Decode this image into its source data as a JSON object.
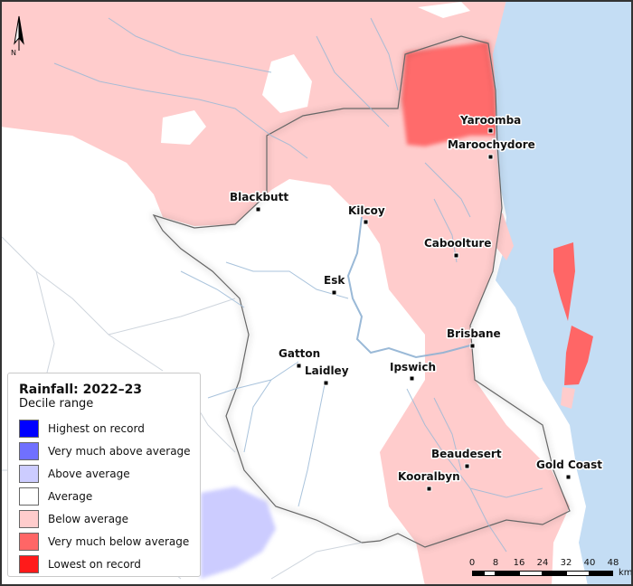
{
  "legend": {
    "title": "Rainfall: 2022–23",
    "subtitle": "Decile range",
    "items": [
      {
        "label": "Highest on record",
        "color": "#0000ff"
      },
      {
        "label": "Very much above average",
        "color": "#7070ff"
      },
      {
        "label": "Above average",
        "color": "#ccccff"
      },
      {
        "label": "Average",
        "color": "#ffffff"
      },
      {
        "label": "Below average",
        "color": "#ffcccc"
      },
      {
        "label": "Very much below average",
        "color": "#ff6666"
      },
      {
        "label": "Lowest on record",
        "color": "#ff1a1a"
      }
    ]
  },
  "towns": [
    {
      "id": "yaroomba",
      "name": "Yaroomba"
    },
    {
      "id": "maroochydore",
      "name": "Maroochydore"
    },
    {
      "id": "blackbutt",
      "name": "Blackbutt"
    },
    {
      "id": "kilcoy",
      "name": "Kilcoy"
    },
    {
      "id": "caboolture",
      "name": "Caboolture"
    },
    {
      "id": "esk",
      "name": "Esk"
    },
    {
      "id": "brisbane",
      "name": "Brisbane"
    },
    {
      "id": "gatton",
      "name": "Gatton"
    },
    {
      "id": "laidley",
      "name": "Laidley"
    },
    {
      "id": "ipswich",
      "name": "Ipswich"
    },
    {
      "id": "beaudesert",
      "name": "Beaudesert"
    },
    {
      "id": "gold-coast",
      "name": "Gold Coast"
    },
    {
      "id": "kooralbyn",
      "name": "Kooralbyn"
    }
  ],
  "scale": {
    "ticks": [
      "0",
      "8",
      "16",
      "24",
      "32",
      "40",
      "48"
    ],
    "unit": "km"
  },
  "north": {
    "label": "N"
  },
  "colors": {
    "sea": "#c4ddf4",
    "average": "#ffffff",
    "below_average": "#ffcccc",
    "very_much_below_average": "#ff6666",
    "above_average": "#ccccff"
  }
}
